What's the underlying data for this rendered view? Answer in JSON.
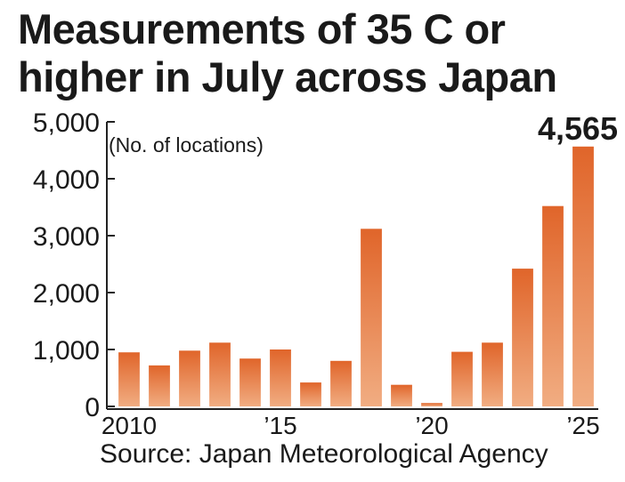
{
  "title_line1": "Measurements of 35 C or",
  "title_line2": "higher in July across Japan",
  "source": "Source: Japan Meteorological Agency",
  "colors": {
    "bar_top": "#e0652a",
    "bar_bottom": "#f1ad82",
    "axis": "#222222",
    "text": "#1a1a1a"
  },
  "chart_data": {
    "type": "bar",
    "title": "Measurements of 35 C or higher in July across Japan",
    "ylabel": "(No. of locations)",
    "xlabel": "",
    "categories": [
      "2010",
      "2011",
      "2012",
      "2013",
      "2014",
      "2015",
      "2016",
      "2017",
      "2018",
      "2019",
      "2020",
      "2021",
      "2022",
      "2023",
      "2024",
      "2025"
    ],
    "values": [
      950,
      720,
      980,
      1120,
      840,
      1000,
      420,
      800,
      3120,
      380,
      60,
      960,
      1120,
      2420,
      3520,
      4565
    ],
    "ylim": [
      0,
      5000
    ],
    "yticks": [
      0,
      1000,
      2000,
      3000,
      4000,
      5000
    ],
    "ytick_labels": [
      "0",
      "1,000",
      "2,000",
      "3,000",
      "4,000",
      "5,000"
    ],
    "xtick_labels": [
      {
        "category": "2010",
        "label": "2010"
      },
      {
        "category": "2015",
        "label": "’15"
      },
      {
        "category": "2020",
        "label": "’20"
      },
      {
        "category": "2025",
        "label": "’25"
      }
    ],
    "annotations": [
      {
        "category": "2025",
        "text": "4,565"
      }
    ],
    "grid": false,
    "legend": "none"
  }
}
